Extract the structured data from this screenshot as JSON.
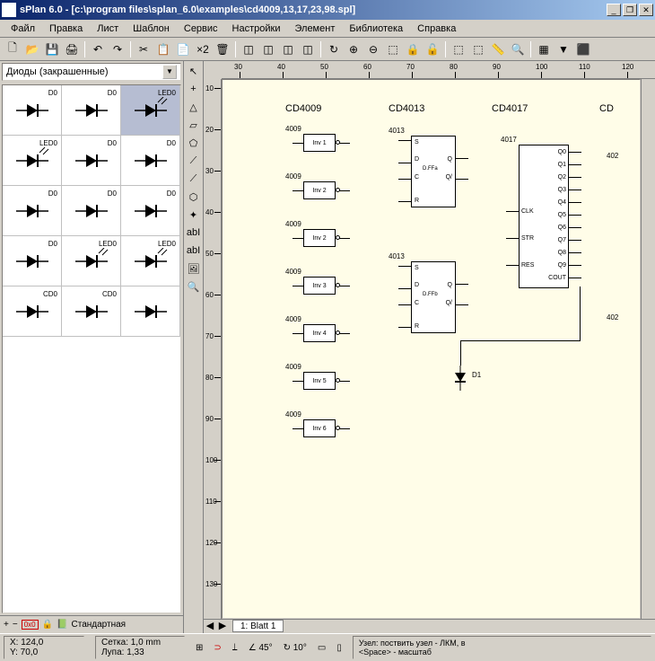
{
  "title": "sPlan 6.0 - [c:\\program files\\splan_6.0\\examples\\cd4009,13,17,23,98.spl]",
  "window_buttons": {
    "min": "_",
    "restore": "❐",
    "close": "✕"
  },
  "menu": [
    "Файл",
    "Правка",
    "Лист",
    "Шаблон",
    "Сервис",
    "Настройки",
    "Элемент",
    "Библиотека",
    "Справка"
  ],
  "toolbar_icons": [
    "🗋",
    "📂",
    "💾",
    "🖨",
    "│",
    "↶",
    "↷",
    "│",
    "✂",
    "📋",
    "📄",
    "×2",
    "🗑",
    "│",
    "◫",
    "◫",
    "◫",
    "◫",
    "│",
    "↻",
    "⊕",
    "⊖",
    "⬚",
    "🔒",
    "🔓",
    "│",
    "⬚",
    "⬚",
    "📏",
    "🔍",
    "│",
    "▦",
    "▼",
    "⬛"
  ],
  "combo_label": "Диоды (закрашенные)",
  "palette": [
    {
      "label": "D0",
      "type": "diode"
    },
    {
      "label": "D0",
      "type": "diode"
    },
    {
      "label": "LED0",
      "type": "led",
      "selected": true
    },
    {
      "label": "LED0",
      "type": "led"
    },
    {
      "label": "D0",
      "type": "zener"
    },
    {
      "label": "D0",
      "type": "zener"
    },
    {
      "label": "D0",
      "type": "varactor"
    },
    {
      "label": "D0",
      "type": "varactor"
    },
    {
      "label": "D0",
      "type": "schottky"
    },
    {
      "label": "D0",
      "type": "diode"
    },
    {
      "label": "LED0",
      "type": "led"
    },
    {
      "label": "LED0",
      "type": "led"
    },
    {
      "label": "CD0",
      "type": "cap"
    },
    {
      "label": "CD0",
      "type": "cap"
    },
    {
      "label": "",
      "type": "bridge"
    }
  ],
  "left_status_label": "Стандартная",
  "center_tools": [
    "↖",
    "+",
    "△",
    "▱",
    "⬠",
    "⟋",
    "⟋",
    "⬡",
    "✦",
    "abI",
    "abI",
    "🖼",
    "🔍"
  ],
  "ruler_h": [
    30,
    40,
    50,
    60,
    70,
    80,
    90,
    100,
    110,
    120
  ],
  "ruler_v": [
    10,
    20,
    30,
    40,
    50,
    60,
    70,
    80,
    90,
    100,
    110,
    120,
    130
  ],
  "canvas": {
    "headers": [
      "CD4009",
      "CD4013",
      "CD4017",
      "CD"
    ],
    "inverters": [
      {
        "id": "4009",
        "label": "Inv 1"
      },
      {
        "id": "4009",
        "label": "Inv 2"
      },
      {
        "id": "4009",
        "label": "Inv 2"
      },
      {
        "id": "4009",
        "label": "Inv 3"
      },
      {
        "id": "4009",
        "label": "Inv 4"
      },
      {
        "id": "4009",
        "label": "Inv 5"
      },
      {
        "id": "4009",
        "label": "Inv 6"
      }
    ],
    "ff": [
      {
        "id": "4013",
        "label": "D.FFa",
        "pins": [
          "S",
          "D",
          "C",
          "R",
          "Q",
          "Q/"
        ]
      },
      {
        "id": "4013",
        "label": "D.FFb",
        "pins": [
          "S",
          "D",
          "C",
          "R",
          "Q",
          "Q/"
        ]
      }
    ],
    "counter": {
      "id": "4017",
      "pins_left": [
        "CLK",
        "STR",
        "RES"
      ],
      "pins_right": [
        "Q0",
        "Q1",
        "Q2",
        "Q3",
        "Q4",
        "Q5",
        "Q6",
        "Q7",
        "Q8",
        "Q9",
        "COUT"
      ]
    },
    "diode_label": "D1",
    "side_labels": [
      "402",
      "402"
    ]
  },
  "sheet_tab": "1: Blatt 1",
  "status": {
    "coords": {
      "x": "X: 124,0",
      "y": "Y: 70,0"
    },
    "grid": {
      "g": "Сетка:  1,0 mm",
      "z": "Лупа:  1,33"
    },
    "angles": {
      "a1": "∠ 45°",
      "a2": "↻ 10°"
    },
    "hint": "Узел: поствить узел - ЛКМ, в\n<Space> - масштаб"
  }
}
